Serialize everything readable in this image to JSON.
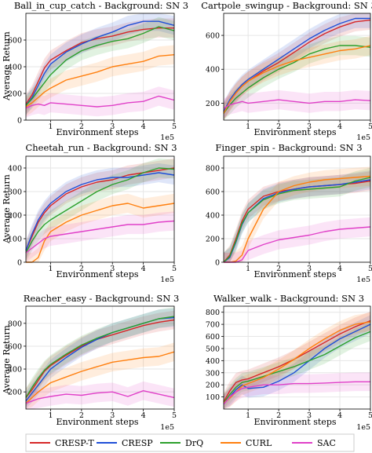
{
  "colors": {
    "CRESP-T": "#d62728",
    "CRESP": "#1f4fd8",
    "DrQ": "#2ca02c",
    "CURL": "#ff7f0e",
    "SAC": "#e040c8"
  },
  "legend": [
    "CRESP-T",
    "CRESP",
    "DrQ",
    "CURL",
    "SAC"
  ],
  "chart_data": [
    {
      "type": "line",
      "title": "Ball_in_cup_catch - Background: SN 3",
      "xlabel": "Environment steps",
      "ylabel": "Average Return",
      "x_multiplier": "1e5",
      "xlim": [
        0.2,
        5
      ],
      "ylim": [
        0,
        800
      ],
      "xticks": [
        1,
        2,
        3,
        4,
        5
      ],
      "yticks": [
        0,
        200,
        400,
        600
      ],
      "grid": true,
      "series": [
        {
          "name": "CRESP-T",
          "x": [
            0.2,
            0.4,
            0.6,
            0.8,
            1.0,
            1.5,
            2.0,
            2.5,
            3.0,
            3.5,
            4.0,
            4.5,
            5.0
          ],
          "y": [
            120,
            190,
            290,
            390,
            450,
            520,
            580,
            610,
            630,
            660,
            680,
            690,
            690
          ]
        },
        {
          "name": "CRESP",
          "x": [
            0.2,
            0.4,
            0.6,
            0.8,
            1.0,
            1.5,
            2.0,
            2.5,
            3.0,
            3.5,
            4.0,
            4.5,
            5.0
          ],
          "y": [
            110,
            170,
            260,
            350,
            420,
            510,
            570,
            620,
            660,
            710,
            740,
            740,
            710
          ]
        },
        {
          "name": "DrQ",
          "x": [
            0.2,
            0.4,
            0.6,
            0.8,
            1.0,
            1.5,
            2.0,
            2.5,
            3.0,
            3.5,
            4.0,
            4.5,
            5.0
          ],
          "y": [
            110,
            160,
            220,
            280,
            340,
            450,
            520,
            560,
            590,
            610,
            650,
            700,
            670
          ]
        },
        {
          "name": "CURL",
          "x": [
            0.2,
            0.4,
            0.6,
            0.8,
            1.0,
            1.5,
            2.0,
            2.5,
            3.0,
            3.5,
            4.0,
            4.5,
            5.0
          ],
          "y": [
            100,
            130,
            170,
            210,
            240,
            300,
            330,
            360,
            400,
            420,
            440,
            480,
            490
          ]
        },
        {
          "name": "SAC",
          "x": [
            0.2,
            0.4,
            0.6,
            0.8,
            1.0,
            1.5,
            2.0,
            2.5,
            3.0,
            3.5,
            4.0,
            4.5,
            5.0
          ],
          "y": [
            90,
            110,
            120,
            110,
            130,
            120,
            110,
            100,
            110,
            130,
            140,
            180,
            150
          ]
        }
      ]
    },
    {
      "type": "line",
      "title": "Cartpole_swingup - Background: SN 3",
      "xlabel": "Environment steps",
      "ylabel": "",
      "x_multiplier": "1e5",
      "xlim": [
        0.2,
        5
      ],
      "ylim": [
        100,
        730
      ],
      "xticks": [
        1,
        2,
        3,
        4,
        5
      ],
      "yticks": [
        200,
        400,
        600
      ],
      "grid": true,
      "series": [
        {
          "name": "CRESP-T",
          "x": [
            0.2,
            0.4,
            0.6,
            0.8,
            1.0,
            1.5,
            2.0,
            2.5,
            3.0,
            3.5,
            4.0,
            4.5,
            5.0
          ],
          "y": [
            150,
            210,
            260,
            300,
            330,
            390,
            440,
            500,
            560,
            610,
            650,
            680,
            690
          ]
        },
        {
          "name": "CRESP",
          "x": [
            0.2,
            0.4,
            0.6,
            0.8,
            1.0,
            1.5,
            2.0,
            2.5,
            3.0,
            3.5,
            4.0,
            4.5,
            5.0
          ],
          "y": [
            150,
            220,
            270,
            310,
            340,
            400,
            460,
            520,
            580,
            630,
            670,
            700,
            700
          ]
        },
        {
          "name": "DrQ",
          "x": [
            0.2,
            0.4,
            0.6,
            0.8,
            1.0,
            1.5,
            2.0,
            2.5,
            3.0,
            3.5,
            4.0,
            4.5,
            5.0
          ],
          "y": [
            140,
            190,
            230,
            260,
            290,
            350,
            400,
            440,
            490,
            520,
            540,
            540,
            530
          ]
        },
        {
          "name": "CURL",
          "x": [
            0.2,
            0.4,
            0.6,
            0.8,
            1.0,
            1.5,
            2.0,
            2.5,
            3.0,
            3.5,
            4.0,
            4.5,
            5.0
          ],
          "y": [
            140,
            210,
            260,
            300,
            330,
            380,
            420,
            450,
            470,
            490,
            510,
            520,
            540
          ]
        },
        {
          "name": "SAC",
          "x": [
            0.2,
            0.4,
            0.6,
            0.8,
            1.0,
            1.5,
            2.0,
            2.5,
            3.0,
            3.5,
            4.0,
            4.5,
            5.0
          ],
          "y": [
            170,
            190,
            200,
            210,
            200,
            210,
            220,
            210,
            200,
            210,
            210,
            220,
            215
          ]
        }
      ]
    },
    {
      "type": "line",
      "title": "Cheetah_run - Background: SN 3",
      "xlabel": "Environment steps",
      "ylabel": "Average Return",
      "x_multiplier": "1e5",
      "xlim": [
        0.2,
        5
      ],
      "ylim": [
        0,
        450
      ],
      "xticks": [
        1,
        2,
        3,
        4,
        5
      ],
      "yticks": [
        0,
        100,
        200,
        300,
        400
      ],
      "grid": true,
      "series": [
        {
          "name": "CRESP-T",
          "x": [
            0.2,
            0.4,
            0.6,
            0.8,
            1.0,
            1.5,
            2.0,
            2.5,
            3.0,
            3.5,
            4.0,
            4.5,
            5.0
          ],
          "y": [
            50,
            110,
            170,
            210,
            240,
            290,
            320,
            340,
            350,
            370,
            380,
            390,
            400
          ]
        },
        {
          "name": "CRESP",
          "x": [
            0.2,
            0.4,
            0.6,
            0.8,
            1.0,
            1.5,
            2.0,
            2.5,
            3.0,
            3.5,
            4.0,
            4.5,
            5.0
          ],
          "y": [
            50,
            120,
            180,
            220,
            250,
            300,
            330,
            350,
            360,
            360,
            370,
            380,
            370
          ]
        },
        {
          "name": "DrQ",
          "x": [
            0.2,
            0.4,
            0.6,
            0.8,
            1.0,
            1.5,
            2.0,
            2.5,
            3.0,
            3.5,
            4.0,
            4.5,
            5.0
          ],
          "y": [
            40,
            90,
            130,
            160,
            180,
            220,
            260,
            300,
            330,
            350,
            380,
            400,
            395
          ]
        },
        {
          "name": "CURL",
          "x": [
            0.2,
            0.4,
            0.6,
            0.8,
            1.0,
            1.5,
            2.0,
            2.5,
            3.0,
            3.5,
            4.0,
            4.5,
            5.0
          ],
          "y": [
            0,
            0,
            20,
            90,
            130,
            170,
            200,
            220,
            240,
            250,
            230,
            240,
            250
          ]
        },
        {
          "name": "SAC",
          "x": [
            0.2,
            0.4,
            0.6,
            0.8,
            1.0,
            1.5,
            2.0,
            2.5,
            3.0,
            3.5,
            4.0,
            4.5,
            5.0
          ],
          "y": [
            40,
            60,
            80,
            100,
            110,
            120,
            130,
            140,
            150,
            160,
            160,
            170,
            175
          ]
        }
      ]
    },
    {
      "type": "line",
      "title": "Finger_spin - Background: SN 3",
      "xlabel": "Environment steps",
      "ylabel": "",
      "x_multiplier": "1e5",
      "xlim": [
        0.2,
        5
      ],
      "ylim": [
        0,
        900
      ],
      "xticks": [
        1,
        2,
        3,
        4,
        5
      ],
      "yticks": [
        0,
        200,
        400,
        600,
        800
      ],
      "grid": true,
      "series": [
        {
          "name": "CRESP-T",
          "x": [
            0.2,
            0.4,
            0.6,
            0.8,
            1.0,
            1.5,
            2.0,
            2.5,
            3.0,
            3.5,
            4.0,
            4.5,
            5.0
          ],
          "y": [
            0,
            60,
            200,
            350,
            450,
            560,
            600,
            620,
            640,
            650,
            660,
            670,
            690
          ]
        },
        {
          "name": "CRESP",
          "x": [
            0.2,
            0.4,
            0.6,
            0.8,
            1.0,
            1.5,
            2.0,
            2.5,
            3.0,
            3.5,
            4.0,
            4.5,
            5.0
          ],
          "y": [
            0,
            40,
            170,
            320,
            420,
            540,
            590,
            620,
            640,
            650,
            660,
            680,
            700
          ]
        },
        {
          "name": "DrQ",
          "x": [
            0.2,
            0.4,
            0.6,
            0.8,
            1.0,
            1.5,
            2.0,
            2.5,
            3.0,
            3.5,
            4.0,
            4.5,
            5.0
          ],
          "y": [
            0,
            50,
            180,
            330,
            420,
            530,
            580,
            610,
            620,
            630,
            640,
            690,
            720
          ]
        },
        {
          "name": "CURL",
          "x": [
            0.2,
            0.4,
            0.6,
            0.8,
            1.0,
            1.5,
            2.0,
            2.5,
            3.0,
            3.5,
            4.0,
            4.5,
            5.0
          ],
          "y": [
            0,
            0,
            10,
            60,
            200,
            450,
            600,
            650,
            680,
            700,
            710,
            720,
            730
          ]
        },
        {
          "name": "SAC",
          "x": [
            0.2,
            0.4,
            0.6,
            0.8,
            1.0,
            1.5,
            2.0,
            2.5,
            3.0,
            3.5,
            4.0,
            4.5,
            5.0
          ],
          "y": [
            0,
            0,
            0,
            20,
            100,
            150,
            190,
            210,
            230,
            260,
            280,
            290,
            300
          ]
        }
      ]
    },
    {
      "type": "line",
      "title": "Reacher_easy - Background: SN 3",
      "xlabel": "Environment steps",
      "ylabel": "Average Return",
      "x_multiplier": "1e5",
      "xlim": [
        0.2,
        5
      ],
      "ylim": [
        50,
        950
      ],
      "xticks": [
        1,
        2,
        3,
        4,
        5
      ],
      "yticks": [
        200,
        400,
        600,
        800
      ],
      "grid": true,
      "series": [
        {
          "name": "CRESP-T",
          "x": [
            0.2,
            0.4,
            0.6,
            0.8,
            1.0,
            1.5,
            2.0,
            2.5,
            3.0,
            3.5,
            4.0,
            4.5,
            5.0
          ],
          "y": [
            150,
            220,
            300,
            380,
            430,
            520,
            600,
            660,
            700,
            740,
            780,
            810,
            830
          ]
        },
        {
          "name": "CRESP",
          "x": [
            0.2,
            0.4,
            0.6,
            0.8,
            1.0,
            1.5,
            2.0,
            2.5,
            3.0,
            3.5,
            4.0,
            4.5,
            5.0
          ],
          "y": [
            120,
            190,
            260,
            330,
            400,
            500,
            590,
            660,
            720,
            760,
            800,
            840,
            850
          ]
        },
        {
          "name": "DrQ",
          "x": [
            0.2,
            0.4,
            0.6,
            0.8,
            1.0,
            1.5,
            2.0,
            2.5,
            3.0,
            3.5,
            4.0,
            4.5,
            5.0
          ],
          "y": [
            150,
            240,
            320,
            390,
            440,
            530,
            610,
            670,
            720,
            760,
            800,
            840,
            860
          ]
        },
        {
          "name": "CURL",
          "x": [
            0.2,
            0.4,
            0.6,
            0.8,
            1.0,
            1.5,
            2.0,
            2.5,
            3.0,
            3.5,
            4.0,
            4.5,
            5.0
          ],
          "y": [
            100,
            150,
            200,
            240,
            280,
            330,
            380,
            420,
            460,
            480,
            500,
            510,
            550
          ]
        },
        {
          "name": "SAC",
          "x": [
            0.2,
            0.4,
            0.6,
            0.8,
            1.0,
            1.5,
            2.0,
            2.5,
            3.0,
            3.5,
            4.0,
            4.5,
            5.0
          ],
          "y": [
            100,
            120,
            140,
            150,
            160,
            180,
            170,
            190,
            200,
            160,
            210,
            180,
            150
          ]
        }
      ]
    },
    {
      "type": "line",
      "title": "Walker_walk - Background: SN 3",
      "xlabel": "Environment steps",
      "ylabel": "",
      "x_multiplier": "1e5",
      "xlim": [
        0.2,
        5
      ],
      "ylim": [
        0,
        850
      ],
      "xticks": [
        1,
        2,
        3,
        4,
        5
      ],
      "yticks": [
        100,
        200,
        300,
        400,
        500,
        600,
        700,
        800
      ],
      "grid": true,
      "series": [
        {
          "name": "CRESP-T",
          "x": [
            0.2,
            0.4,
            0.6,
            0.8,
            1.0,
            1.5,
            2.0,
            2.5,
            3.0,
            3.5,
            4.0,
            4.5,
            5.0
          ],
          "y": [
            60,
            150,
            220,
            240,
            250,
            300,
            350,
            410,
            480,
            550,
            620,
            680,
            730
          ]
        },
        {
          "name": "CRESP",
          "x": [
            0.2,
            0.4,
            0.6,
            0.8,
            1.0,
            1.5,
            2.0,
            2.5,
            3.0,
            3.5,
            4.0,
            4.5,
            5.0
          ],
          "y": [
            40,
            100,
            160,
            200,
            170,
            180,
            230,
            300,
            400,
            500,
            580,
            640,
            700
          ]
        },
        {
          "name": "DrQ",
          "x": [
            0.2,
            0.4,
            0.6,
            0.8,
            1.0,
            1.5,
            2.0,
            2.5,
            3.0,
            3.5,
            4.0,
            4.5,
            5.0
          ],
          "y": [
            50,
            120,
            180,
            220,
            230,
            270,
            310,
            350,
            400,
            450,
            520,
            590,
            640
          ]
        },
        {
          "name": "CURL",
          "x": [
            0.2,
            0.4,
            0.6,
            0.8,
            1.0,
            1.5,
            2.0,
            2.5,
            3.0,
            3.5,
            4.0,
            4.5,
            5.0
          ],
          "y": [
            50,
            90,
            140,
            190,
            210,
            260,
            330,
            410,
            500,
            580,
            650,
            700,
            720
          ]
        },
        {
          "name": "SAC",
          "x": [
            0.2,
            0.4,
            0.6,
            0.8,
            1.0,
            1.5,
            2.0,
            2.5,
            3.0,
            3.5,
            4.0,
            4.5,
            5.0
          ],
          "y": [
            40,
            100,
            140,
            170,
            180,
            200,
            200,
            210,
            210,
            215,
            220,
            225,
            225
          ]
        }
      ]
    }
  ]
}
